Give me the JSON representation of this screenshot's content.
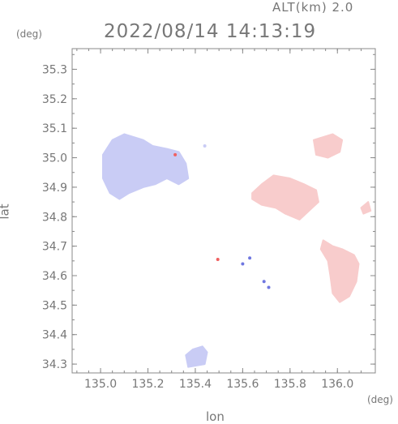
{
  "header": {
    "altitude_label": "ALT(km) 2.0",
    "timestamp": "2022/08/14 14:13:19"
  },
  "axes": {
    "y_unit": "(deg)",
    "x_unit": "(deg)",
    "y_label": "lat",
    "x_label": "lon",
    "x_ticks": [
      "135.0",
      "135.2",
      "135.4",
      "135.6",
      "135.8",
      "136.0"
    ],
    "y_ticks": [
      "35.3",
      "35.2",
      "35.1",
      "35.0",
      "34.9",
      "34.8",
      "34.7",
      "34.6",
      "34.5",
      "34.4",
      "34.3"
    ],
    "lon_range": [
      134.88,
      136.16
    ],
    "lat_range": [
      34.27,
      35.37
    ]
  },
  "colors": {
    "approaching": "#c9ccf5",
    "receding": "#f8cccc",
    "strong_red": "#f06060",
    "strong_blue": "#6f77e0",
    "axis": "#888888"
  },
  "echoes": [
    {
      "name": "echo-west-blue",
      "kind": "approaching",
      "outline": [
        [
          135.01,
          35.01
        ],
        [
          135.05,
          35.06
        ],
        [
          135.1,
          35.08
        ],
        [
          135.18,
          35.06
        ],
        [
          135.22,
          35.04
        ],
        [
          135.28,
          35.03
        ],
        [
          135.33,
          35.02
        ],
        [
          135.36,
          34.98
        ],
        [
          135.37,
          34.93
        ],
        [
          135.33,
          34.91
        ],
        [
          135.28,
          34.93
        ],
        [
          135.23,
          34.91
        ],
        [
          135.18,
          34.9
        ],
        [
          135.12,
          34.88
        ],
        [
          135.08,
          34.86
        ],
        [
          135.04,
          34.88
        ],
        [
          135.01,
          34.93
        ]
      ]
    },
    {
      "name": "echo-south-blue",
      "kind": "approaching",
      "outline": [
        [
          135.36,
          34.33
        ],
        [
          135.39,
          34.35
        ],
        [
          135.43,
          34.36
        ],
        [
          135.45,
          34.34
        ],
        [
          135.44,
          34.3
        ],
        [
          135.37,
          34.29
        ]
      ]
    },
    {
      "name": "echo-ne-red",
      "kind": "receding",
      "outline": [
        [
          135.9,
          35.06
        ],
        [
          135.94,
          35.07
        ],
        [
          135.98,
          35.08
        ],
        [
          136.02,
          35.06
        ],
        [
          136.01,
          35.02
        ],
        [
          135.96,
          35.0
        ],
        [
          135.91,
          35.01
        ]
      ]
    },
    {
      "name": "echo-center-red",
      "kind": "receding",
      "outline": [
        [
          135.64,
          34.88
        ],
        [
          135.68,
          34.91
        ],
        [
          135.73,
          34.94
        ],
        [
          135.8,
          34.93
        ],
        [
          135.86,
          34.91
        ],
        [
          135.91,
          34.89
        ],
        [
          135.92,
          34.85
        ],
        [
          135.88,
          34.82
        ],
        [
          135.84,
          34.79
        ],
        [
          135.78,
          34.81
        ],
        [
          135.74,
          34.83
        ],
        [
          135.68,
          34.84
        ],
        [
          135.64,
          34.86
        ]
      ]
    },
    {
      "name": "echo-se-red",
      "kind": "receding",
      "outline": [
        [
          135.94,
          34.72
        ],
        [
          135.98,
          34.7
        ],
        [
          136.02,
          34.69
        ],
        [
          136.07,
          34.67
        ],
        [
          136.09,
          34.64
        ],
        [
          136.08,
          34.58
        ],
        [
          136.05,
          34.53
        ],
        [
          136.01,
          34.51
        ],
        [
          135.98,
          34.54
        ],
        [
          135.97,
          34.6
        ],
        [
          135.96,
          34.65
        ],
        [
          135.93,
          34.69
        ]
      ]
    },
    {
      "name": "echo-small-red",
      "kind": "receding",
      "outline": [
        [
          136.1,
          34.83
        ],
        [
          136.13,
          34.85
        ],
        [
          136.14,
          34.82
        ],
        [
          136.11,
          34.81
        ]
      ]
    }
  ],
  "speckles": [
    {
      "name": "speck-red-1",
      "kind": "strong_red",
      "lon": 135.315,
      "lat": 35.01
    },
    {
      "name": "speck-blue-1",
      "kind": "strong_blue",
      "lon": 135.6,
      "lat": 34.64
    },
    {
      "name": "speck-blue-2",
      "kind": "strong_blue",
      "lon": 135.69,
      "lat": 34.58
    },
    {
      "name": "speck-blue-3",
      "kind": "strong_blue",
      "lon": 135.71,
      "lat": 34.56
    },
    {
      "name": "speck-red-2",
      "kind": "strong_red",
      "lon": 135.495,
      "lat": 34.655
    },
    {
      "name": "speck-blue-4",
      "kind": "strong_blue",
      "lon": 135.63,
      "lat": 34.66
    },
    {
      "name": "speck-blue-5",
      "kind": "approaching",
      "lon": 135.44,
      "lat": 35.04
    }
  ]
}
